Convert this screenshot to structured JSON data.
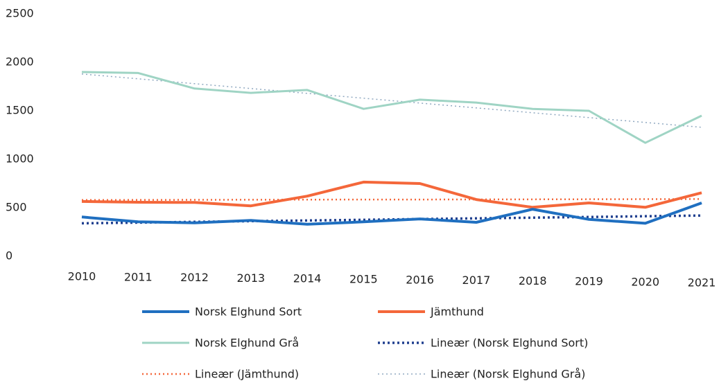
{
  "chart_data": {
    "type": "line",
    "x": [
      2010,
      2011,
      2012,
      2013,
      2014,
      2015,
      2016,
      2017,
      2018,
      2019,
      2020,
      2021
    ],
    "xlim": [
      2010,
      2021
    ],
    "ylim": [
      0,
      2500
    ],
    "yticks": [
      0,
      500,
      1000,
      1500,
      2000,
      2500
    ],
    "grid": false,
    "legend": "bottom",
    "series": [
      {
        "name": "Norsk Elghund Sort",
        "color": "#1f6fc0",
        "style": "solid",
        "values": [
          405,
          355,
          345,
          370,
          330,
          355,
          385,
          350,
          485,
          380,
          340,
          550
        ]
      },
      {
        "name": "Jämthund",
        "color": "#f4673a",
        "style": "solid",
        "values": [
          565,
          557,
          555,
          520,
          620,
          765,
          750,
          585,
          505,
          550,
          505,
          655
        ]
      },
      {
        "name": "Norsk Elghund Grå",
        "color": "#9fd4c4",
        "style": "solid",
        "values": [
          1900,
          1890,
          1730,
          1685,
          1715,
          1520,
          1615,
          1585,
          1520,
          1500,
          1170,
          1450
        ]
      },
      {
        "name": "Lineær (Norsk Elghund Sort)",
        "color": "#1f3f8f",
        "style": "dotted",
        "values": [
          340,
          347,
          355,
          362,
          369,
          376,
          384,
          391,
          398,
          405,
          413,
          420
        ]
      },
      {
        "name": "Lineær (Jämthund)",
        "color": "#f4673a",
        "style": "dotted",
        "values": [
          580,
          581,
          582,
          583,
          584,
          585,
          585,
          586,
          587,
          588,
          589,
          590
        ]
      },
      {
        "name": "Lineær (Norsk Elghund Grå)",
        "color": "#8fa8c0",
        "style": "dotted",
        "values": [
          1880,
          1830,
          1780,
          1730,
          1680,
          1630,
          1580,
          1530,
          1480,
          1430,
          1380,
          1330
        ]
      }
    ]
  }
}
